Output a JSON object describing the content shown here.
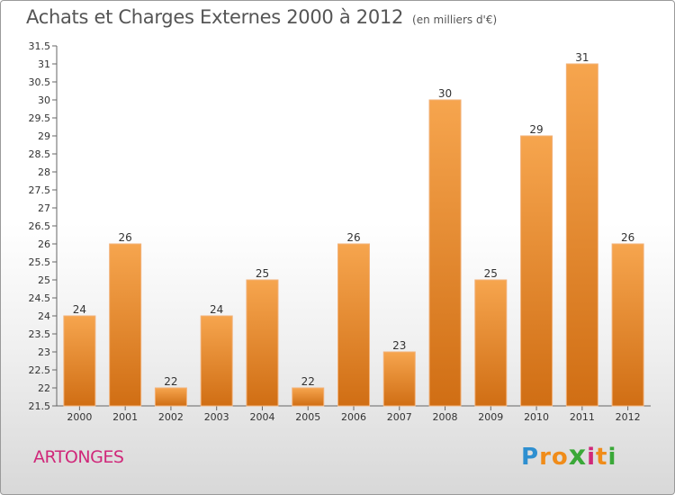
{
  "header": {
    "title": "Achats et Charges Externes 2000 à 2012",
    "subtitle": "(en milliers d'€)"
  },
  "footer": {
    "commune": "ARTONGES",
    "logo_letters": [
      "P",
      "r",
      "o",
      "x",
      "i",
      "t",
      "i"
    ],
    "logo_colors": [
      "#2e8fd0",
      "#f08c1a",
      "#f08c1a",
      "#3aa838",
      "#d0287a",
      "#f08c1a",
      "#3aa838"
    ]
  },
  "chart_data": {
    "type": "bar",
    "title": "Achats et Charges Externes 2000 à 2012",
    "subtitle": "(en milliers d'€)",
    "categories": [
      "2000",
      "2001",
      "2002",
      "2003",
      "2004",
      "2005",
      "2006",
      "2007",
      "2008",
      "2009",
      "2010",
      "2011",
      "2012"
    ],
    "values": [
      24,
      26,
      22,
      24,
      25,
      22,
      26,
      23,
      30,
      25,
      29,
      31,
      26
    ],
    "ylim": [
      21.5,
      31.5
    ],
    "yticks": [
      "21.5",
      "22",
      "22.5",
      "23",
      "23.5",
      "24",
      "24.5",
      "25",
      "25.5",
      "26",
      "26.5",
      "27",
      "27.5",
      "28",
      "28.5",
      "29",
      "29.5",
      "30",
      "30.5",
      "31",
      "31.5"
    ],
    "grid": false,
    "bar_color_light": "#f6a54e",
    "bar_color_dark": "#d06e14",
    "axis_color": "#666666"
  }
}
